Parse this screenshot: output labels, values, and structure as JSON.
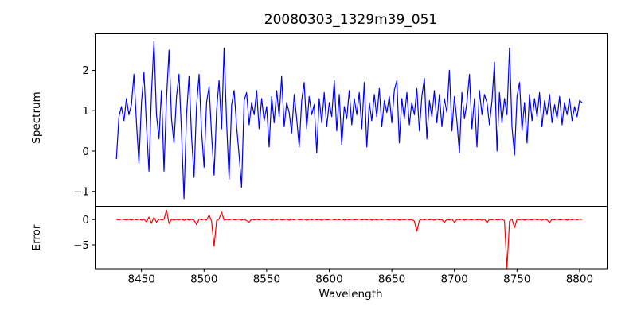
{
  "figure_title": "20080303_1329m39_051",
  "colors": {
    "spectrum_line": "#0000ff",
    "error_line": "#ff0000",
    "axis": "#000000",
    "background": "#ffffff"
  },
  "chart_data": [
    {
      "type": "line",
      "title": "20080303_1329m39_051",
      "ylabel": "Spectrum",
      "xlabel": "",
      "grid": false,
      "legend": "none",
      "xlim": [
        8413,
        8822
      ],
      "ylim": [
        -1.37,
        2.905
      ],
      "yticks": [
        -1,
        0,
        1,
        2
      ],
      "series": [
        {
          "name": "spectrum",
          "color": "#0000ff",
          "x_start": 8430,
          "x_step": 2,
          "values": [
            -0.2,
            0.85,
            1.1,
            0.75,
            1.3,
            0.9,
            1.15,
            1.9,
            0.7,
            -0.3,
            1.2,
            1.95,
            0.6,
            -0.5,
            1.4,
            2.72,
            0.9,
            0.3,
            1.5,
            -0.5,
            1.3,
            2.5,
            0.8,
            0.2,
            1.35,
            1.9,
            0.45,
            -1.18,
            0.9,
            1.85,
            0.35,
            -0.65,
            1.1,
            1.9,
            0.5,
            -0.4,
            1.2,
            1.6,
            0.4,
            -0.6,
            1.0,
            1.75,
            0.55,
            2.55,
            0.7,
            -0.7,
            1.15,
            1.5,
            0.6,
            -0.1,
            -0.9,
            1.25,
            1.45,
            0.65,
            1.2,
            0.9,
            1.5,
            0.55,
            1.3,
            0.75,
            1.1,
            0.1,
            1.35,
            0.7,
            1.5,
            0.85,
            1.85,
            0.6,
            1.2,
            0.95,
            0.45,
            1.4,
            0.8,
            0.1,
            1.25,
            1.7,
            0.55,
            1.35,
            0.9,
            1.15,
            -0.05,
            1.3,
            0.7,
            1.45,
            0.6,
            1.2,
            0.85,
            1.75,
            0.5,
            1.4,
            0.15,
            1.1,
            0.8,
            1.5,
            0.65,
            1.3,
            0.9,
            1.45,
            0.55,
            1.7,
            0.1,
            1.2,
            0.75,
            1.4,
            0.85,
            1.55,
            0.6,
            1.25,
            0.95,
            1.35,
            0.7,
            1.5,
            1.75,
            0.2,
            1.3,
            0.8,
            1.45,
            0.65,
            1.2,
            0.9,
            1.55,
            0.5,
            1.35,
            1.8,
            0.3,
            1.25,
            0.85,
            1.5,
            0.7,
            1.4,
            0.6,
            1.3,
            0.95,
            2.0,
            0.5,
            1.35,
            0.75,
            -0.05,
            1.45,
            0.8,
            1.2,
            1.9,
            0.55,
            1.3,
            0.1,
            1.5,
            0.9,
            1.4,
            1.2,
            0.65,
            1.25,
            2.2,
            0.0,
            1.45,
            0.7,
            1.3,
            0.9,
            2.55,
            0.6,
            -0.1,
            1.35,
            1.7,
            0.5,
            1.2,
            0.2,
            1.4,
            0.75,
            1.3,
            0.85,
            1.45,
            0.6,
            1.25,
            0.9,
            1.4,
            0.7,
            1.15,
            0.8,
            1.35,
            0.65,
            1.2,
            0.9,
            1.3,
            0.75,
            1.1,
            0.85,
            1.25,
            1.2
          ]
        }
      ]
    },
    {
      "type": "line",
      "title": "",
      "ylabel": "Error",
      "xlabel": "Wavelength",
      "grid": false,
      "legend": "none",
      "xlim": [
        8413,
        8822
      ],
      "ylim": [
        -9.8,
        2.63
      ],
      "yticks": [
        -5,
        0
      ],
      "xticks": [
        8450,
        8500,
        8550,
        8600,
        8650,
        8700,
        8750,
        8800
      ],
      "series": [
        {
          "name": "error",
          "color": "#ff0000",
          "x_start": 8430,
          "x_step": 2,
          "values": [
            0.05,
            -0.05,
            0.1,
            0.0,
            -0.08,
            0.06,
            -0.1,
            0.08,
            -0.05,
            0.1,
            -0.1,
            0.05,
            -0.45,
            0.5,
            -0.7,
            0.45,
            -0.5,
            0.1,
            -0.08,
            0.05,
            1.9,
            -0.8,
            0.1,
            -0.1,
            0.05,
            -0.05,
            0.1,
            -0.15,
            0.08,
            -0.1,
            0.05,
            -0.1,
            -1.0,
            0.1,
            -0.05,
            0.08,
            -0.1,
            0.9,
            -0.3,
            -5.3,
            -0.2,
            0.1,
            1.5,
            -0.1,
            0.05,
            -0.08,
            0.1,
            -0.05,
            0.0,
            0.08,
            -0.1,
            0.05,
            -0.2,
            -0.5,
            0.1,
            -0.05,
            0.05,
            -0.08,
            0.1,
            -0.05,
            0.0,
            0.08,
            -0.1,
            0.05,
            -0.05,
            0.1,
            -0.08,
            0.0,
            0.06,
            -0.1,
            0.05,
            -0.05,
            0.1,
            -0.08,
            0.0,
            0.08,
            -0.1,
            0.05,
            -0.05,
            0.1,
            -0.06,
            0.05,
            -0.1,
            0.08,
            -0.05,
            0.0,
            0.1,
            -0.08,
            0.05,
            -0.05,
            0.1,
            -0.1,
            0.05,
            -0.06,
            0.08,
            -0.05,
            0.0,
            0.1,
            -0.08,
            0.05,
            -0.05,
            0.1,
            -0.1,
            0.05,
            -0.08,
            0.06,
            -0.05,
            0.1,
            0.0,
            -0.08,
            0.05,
            -0.05,
            0.1,
            -0.1,
            0.05,
            -0.06,
            0.08,
            -0.05,
            0.0,
            -0.3,
            -2.3,
            -0.2,
            0.05,
            -0.08,
            0.1,
            -0.05,
            0.05,
            -0.1,
            0.08,
            -0.05,
            0.0,
            -0.55,
            0.05,
            -0.08,
            0.1,
            -0.55,
            0.05,
            -0.05,
            0.08,
            -0.1,
            0.05,
            0.0,
            -0.08,
            0.1,
            -0.05,
            0.05,
            -0.1,
            0.08,
            -0.6,
            0.05,
            -0.05,
            0.1,
            -0.08,
            0.0,
            0.05,
            -0.2,
            -9.6,
            -0.3,
            0.1,
            -1.6,
            0.05,
            -0.05,
            0.08,
            -0.1,
            0.05,
            0.0,
            -0.08,
            0.1,
            -0.05,
            0.05,
            -0.1,
            0.08,
            -0.05,
            -0.6,
            0.05,
            -0.05,
            0.1,
            -0.08,
            0.0,
            0.06,
            -0.1,
            0.05,
            -0.05,
            0.08,
            -0.06,
            0.1,
            0.0
          ]
        }
      ]
    }
  ]
}
